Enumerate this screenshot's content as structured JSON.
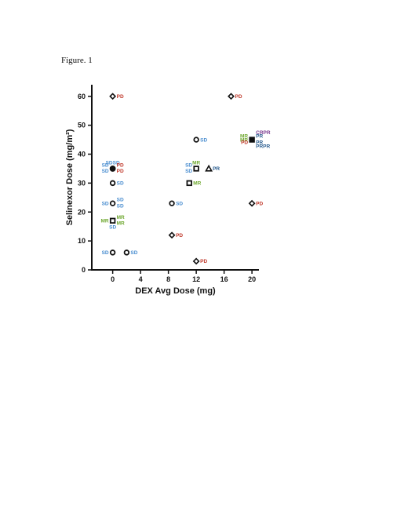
{
  "figure": {
    "caption": "Figure. 1"
  },
  "colors": {
    "SD": "#4a8ed0",
    "PD": "#c0392b",
    "MR": "#6fa830",
    "PR": "#2a5d8f",
    "CR": "#7a3b8f",
    "marker": "#111111"
  },
  "chart_data": {
    "type": "scatter",
    "title": "",
    "xlabel": "DEX Avg Dose (mg)",
    "ylabel": "Selinexor Dose (mg/m²)",
    "xlim": [
      -3,
      21
    ],
    "ylim": [
      0,
      64
    ],
    "xticks": [
      0,
      4,
      8,
      12,
      16,
      20
    ],
    "yticks": [
      0,
      10,
      20,
      30,
      40,
      50,
      60
    ],
    "grid": false,
    "points": [
      {
        "x": 0,
        "y": 60,
        "marker": "diamond",
        "labels": [
          {
            "text": "PD",
            "resp": "PD",
            "side": "right"
          }
        ]
      },
      {
        "x": 17,
        "y": 60,
        "marker": "diamond",
        "labels": [
          {
            "text": "PD",
            "resp": "PD",
            "side": "right"
          }
        ]
      },
      {
        "x": 12,
        "y": 45,
        "marker": "circle",
        "labels": [
          {
            "text": "SD",
            "resp": "SD",
            "side": "right"
          }
        ]
      },
      {
        "x": 20,
        "y": 45,
        "marker": "square-filled",
        "labels": [
          {
            "text": "CRPR",
            "resp": "CR",
            "side": "right-up2"
          },
          {
            "text": "PR",
            "resp": "PR",
            "side": "right-up1"
          },
          {
            "text": "PR",
            "resp": "PR",
            "side": "right-down1"
          },
          {
            "text": "PRPR",
            "resp": "PR",
            "side": "right-down2"
          },
          {
            "text": "MR",
            "resp": "MR",
            "side": "left-up1"
          },
          {
            "text": "MR",
            "resp": "MR",
            "side": "left"
          },
          {
            "text": "PD",
            "resp": "PD",
            "side": "left-down1"
          }
        ]
      },
      {
        "x": 0,
        "y": 35,
        "marker": "circle-filled",
        "labels": [
          {
            "text": "SDSD",
            "resp": "SD",
            "side": "top"
          },
          {
            "text": "SD",
            "resp": "SD",
            "side": "left-up1"
          },
          {
            "text": "SD",
            "resp": "SD",
            "side": "left-down1"
          },
          {
            "text": "PD",
            "resp": "PD",
            "side": "right-up1"
          },
          {
            "text": "PD",
            "resp": "PD",
            "side": "right-down1"
          }
        ]
      },
      {
        "x": 12,
        "y": 35,
        "marker": "square",
        "labels": [
          {
            "text": "MR",
            "resp": "MR",
            "side": "top"
          },
          {
            "text": "SD",
            "resp": "SD",
            "side": "left-up1"
          },
          {
            "text": "SD",
            "resp": "SD",
            "side": "left-down1"
          }
        ]
      },
      {
        "x": 13.8,
        "y": 35,
        "marker": "triangle",
        "labels": [
          {
            "text": "PR",
            "resp": "PR",
            "side": "right"
          }
        ]
      },
      {
        "x": 0,
        "y": 30,
        "marker": "circle",
        "labels": [
          {
            "text": "SD",
            "resp": "SD",
            "side": "right"
          }
        ]
      },
      {
        "x": 11,
        "y": 30,
        "marker": "square",
        "labels": [
          {
            "text": "MR",
            "resp": "MR",
            "side": "right"
          }
        ]
      },
      {
        "x": 0,
        "y": 23,
        "marker": "circle",
        "labels": [
          {
            "text": "SD",
            "resp": "SD",
            "side": "left"
          },
          {
            "text": "SD",
            "resp": "SD",
            "side": "right-up1"
          },
          {
            "text": "SD",
            "resp": "SD",
            "side": "right-down1"
          }
        ]
      },
      {
        "x": 8.5,
        "y": 23,
        "marker": "circle",
        "labels": [
          {
            "text": "SD",
            "resp": "SD",
            "side": "right"
          }
        ]
      },
      {
        "x": 20,
        "y": 23,
        "marker": "diamond",
        "labels": [
          {
            "text": "PD",
            "resp": "PD",
            "side": "right"
          }
        ]
      },
      {
        "x": 0,
        "y": 17,
        "marker": "square",
        "labels": [
          {
            "text": "MR",
            "resp": "MR",
            "side": "left"
          },
          {
            "text": "MR",
            "resp": "MR",
            "side": "right-up1"
          },
          {
            "text": "MR",
            "resp": "MR",
            "side": "right-down1"
          },
          {
            "text": "SD",
            "resp": "SD",
            "side": "bottom"
          }
        ]
      },
      {
        "x": 8.5,
        "y": 12,
        "marker": "diamond",
        "labels": [
          {
            "text": "PD",
            "resp": "PD",
            "side": "right"
          }
        ]
      },
      {
        "x": 0,
        "y": 6,
        "marker": "circle",
        "labels": [
          {
            "text": "SD",
            "resp": "SD",
            "side": "left"
          }
        ]
      },
      {
        "x": 2,
        "y": 6,
        "marker": "circle",
        "labels": [
          {
            "text": "SD",
            "resp": "SD",
            "side": "right"
          }
        ]
      },
      {
        "x": 12,
        "y": 3,
        "marker": "diamond",
        "labels": [
          {
            "text": "PD",
            "resp": "PD",
            "side": "right"
          }
        ]
      }
    ]
  }
}
